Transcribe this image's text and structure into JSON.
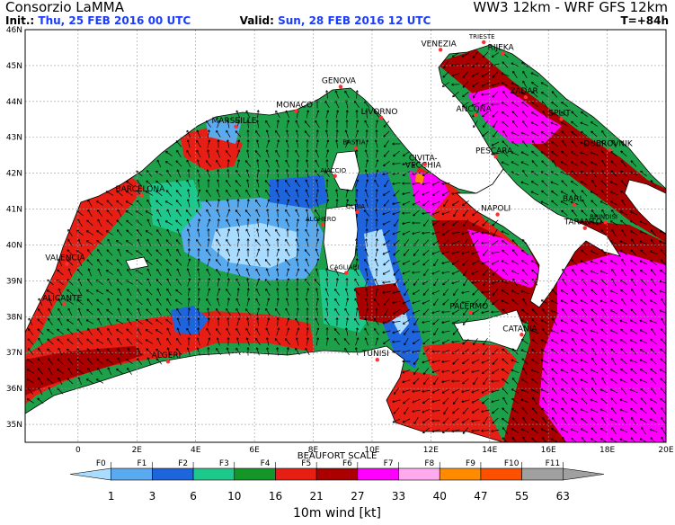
{
  "header": {
    "org": "Consorzio LaMMA",
    "model": "WW3 12km - WRF GFS 12km",
    "init_label": "Init.:",
    "init_value": "Thu, 25 FEB 2016   00 UTC",
    "valid_label": "Valid:",
    "valid_value": "Sun, 28 FEB 2016   12 UTC",
    "forecast_hour": "T=+84h"
  },
  "map": {
    "lat_labels": [
      "46N",
      "45N",
      "44N",
      "43N",
      "42N",
      "41N",
      "40N",
      "39N",
      "38N",
      "37N",
      "36N",
      "35N"
    ],
    "lon_labels": [
      "0",
      "2E",
      "4E",
      "6E",
      "8E",
      "10E",
      "12E",
      "14E",
      "16E",
      "18E",
      "20E"
    ],
    "colors": {
      "sea": "#1ea04a",
      "land": "#ffffff",
      "coast": "#000000",
      "grid": "#888888"
    },
    "cities": [
      {
        "name": "TRIESTE",
        "lon": 13.8,
        "lat": 45.65
      },
      {
        "name": "VENEZIA",
        "lon": 12.33,
        "lat": 45.44
      },
      {
        "name": "RIJEKA",
        "lon": 14.44,
        "lat": 45.33
      },
      {
        "name": "GENOVA",
        "lon": 8.93,
        "lat": 44.41
      },
      {
        "name": "MONACO",
        "lon": 7.42,
        "lat": 43.73
      },
      {
        "name": "ZADAR",
        "lon": 15.23,
        "lat": 44.12
      },
      {
        "name": "MARSEILLE",
        "lon": 5.37,
        "lat": 43.3
      },
      {
        "name": "LIVORNO",
        "lon": 10.31,
        "lat": 43.55
      },
      {
        "name": "ANCONA",
        "lon": 13.52,
        "lat": 43.62
      },
      {
        "name": "SPLIT",
        "lon": 16.44,
        "lat": 43.51
      },
      {
        "name": "BASTIA",
        "lon": 9.45,
        "lat": 42.7
      },
      {
        "name": "DUBROVNIK",
        "lon": 18.09,
        "lat": 42.65
      },
      {
        "name": "PESCARA",
        "lon": 14.21,
        "lat": 42.46
      },
      {
        "name": "AJACCIO",
        "lon": 8.74,
        "lat": 41.92
      },
      {
        "name": "CIVITA-",
        "lon": 11.8,
        "lat": 42.25
      },
      {
        "name": "VECCHIA",
        "lon": 11.8,
        "lat": 42.05
      },
      {
        "name": "BARCELONA",
        "lon": 2.17,
        "lat": 41.39
      },
      {
        "name": "OLBIA",
        "lon": 9.5,
        "lat": 40.92
      },
      {
        "name": "NAPOLI",
        "lon": 14.27,
        "lat": 40.85
      },
      {
        "name": "BARI",
        "lon": 16.87,
        "lat": 41.12
      },
      {
        "name": "BRINDISI",
        "lon": 17.94,
        "lat": 40.63
      },
      {
        "name": "ALGHERO",
        "lon": 8.32,
        "lat": 40.56
      },
      {
        "name": "TARANTO",
        "lon": 17.24,
        "lat": 40.47
      },
      {
        "name": "VALENCIA",
        "lon": -0.38,
        "lat": 39.47
      },
      {
        "name": "CAGLIARI",
        "lon": 9.12,
        "lat": 39.22
      },
      {
        "name": "ALICANTE",
        "lon": -0.48,
        "lat": 38.35
      },
      {
        "name": "PALERMO",
        "lon": 13.36,
        "lat": 38.12
      },
      {
        "name": "CATANIA",
        "lon": 15.09,
        "lat": 37.5
      },
      {
        "name": "TUNISI",
        "lon": 10.18,
        "lat": 36.8
      },
      {
        "name": "ALGERI",
        "lon": 3.06,
        "lat": 36.75
      }
    ]
  },
  "legend": {
    "title": "BEAUFORT SCALE",
    "force_labels": [
      "F0",
      "F1",
      "F2",
      "F3",
      "F4",
      "F5",
      "F6",
      "F7",
      "F8",
      "F9",
      "F10",
      "F11"
    ],
    "value_labels": [
      "1",
      "3",
      "6",
      "10",
      "16",
      "21",
      "27",
      "33",
      "40",
      "47",
      "55",
      "63"
    ],
    "colors": [
      "#aadcff",
      "#5aaaf0",
      "#1e64dc",
      "#1ec88c",
      "#149628",
      "#e61e14",
      "#aa0000",
      "#ff00ff",
      "#ffaaee",
      "#ff8c00",
      "#ff5000",
      "#a0a0a0"
    ],
    "units": "10m wind [kt]"
  }
}
